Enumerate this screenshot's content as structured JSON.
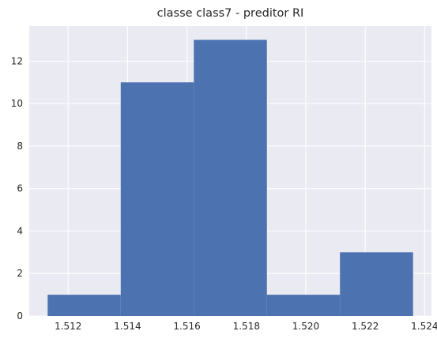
{
  "chart_data": {
    "type": "histogram",
    "title": "classe class7 - preditor RI",
    "xlabel": "",
    "ylabel": "",
    "bins": [
      {
        "start": 1.51131,
        "end": 1.51377,
        "count": 1
      },
      {
        "start": 1.51377,
        "end": 1.51623,
        "count": 11
      },
      {
        "start": 1.51623,
        "end": 1.51869,
        "count": 13
      },
      {
        "start": 1.51869,
        "end": 1.52115,
        "count": 1
      },
      {
        "start": 1.52115,
        "end": 1.52361,
        "count": 3
      }
    ],
    "xlim": [
      1.51069,
      1.52423
    ],
    "ylim": [
      0,
      13.65
    ],
    "x_ticks": [
      1.512,
      1.514,
      1.516,
      1.518,
      1.52,
      1.522,
      1.524
    ],
    "x_tick_labels": [
      "1.512",
      "1.514",
      "1.516",
      "1.518",
      "1.520",
      "1.522",
      "1.524"
    ],
    "y_ticks": [
      0,
      2,
      4,
      6,
      8,
      10,
      12
    ],
    "y_tick_labels": [
      "0",
      "2",
      "4",
      "6",
      "8",
      "10",
      "12"
    ],
    "grid": true,
    "bar_color": "#4c72b0",
    "background_color": "#eaeaf2",
    "grid_color": "#ffffff"
  }
}
